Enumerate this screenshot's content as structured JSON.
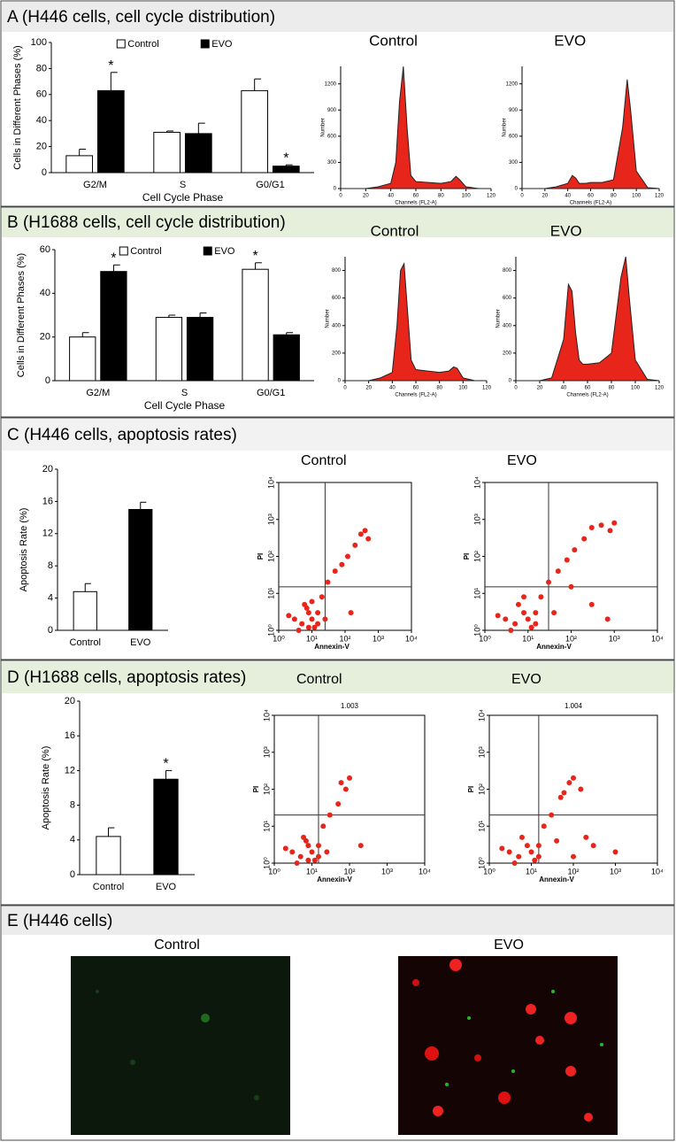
{
  "panels": [
    "A (H446 cells, cell cycle distribution)",
    "B (H1688 cells, cell cycle distribution)",
    "C (H446 cells, apoptosis rates)",
    "D (H1688 cells, apoptosis rates)",
    "E (H446 cells)"
  ],
  "images": [
    {
      "label": "Control"
    },
    {
      "label": "EVO"
    }
  ],
  "chart_data": [
    {
      "type": "bar",
      "ylabel": "Cells in Different Phases (%)",
      "xlabel": "Cell Cycle Phase",
      "categories": [
        "G2/M",
        "S",
        "G0/G1"
      ],
      "series": [
        {
          "name": "Control",
          "color": "#ffffff",
          "values": [
            13,
            31,
            63
          ],
          "errors": [
            5,
            1,
            9
          ]
        },
        {
          "name": "EVO",
          "color": "#000000",
          "values": [
            63,
            30,
            5
          ],
          "errors": [
            14,
            8,
            1
          ],
          "markers": [
            "*",
            null,
            "*"
          ]
        }
      ],
      "ylim": [
        0,
        100
      ],
      "yticks": [
        0,
        20,
        40,
        60,
        80,
        100
      ]
    },
    {
      "type": "area",
      "title": "Control",
      "ylabel": "Number",
      "xlabel": "Channels (FL2-A)",
      "color": "#e8251b",
      "x": [
        0,
        10,
        20,
        30,
        40,
        44,
        47,
        50,
        53,
        56,
        60,
        70,
        80,
        88,
        92,
        95,
        100,
        110,
        120
      ],
      "values": [
        0,
        0,
        0,
        20,
        60,
        300,
        1000,
        1400,
        700,
        150,
        80,
        70,
        60,
        80,
        140,
        100,
        20,
        0,
        0
      ],
      "xlim": [
        0,
        120
      ],
      "xticks": [
        0,
        20,
        40,
        60,
        80,
        100,
        120
      ],
      "ylim": [
        0,
        1400
      ],
      "yticks": [
        0,
        300,
        600,
        900,
        1200
      ]
    },
    {
      "type": "area",
      "title": "EVO",
      "ylabel": "Number",
      "xlabel": "Channels (FL2-A)",
      "color": "#e8251b",
      "x": [
        0,
        10,
        20,
        30,
        40,
        44,
        47,
        50,
        53,
        56,
        60,
        70,
        80,
        88,
        92,
        95,
        100,
        110,
        120
      ],
      "values": [
        0,
        0,
        0,
        20,
        60,
        150,
        120,
        60,
        60,
        60,
        70,
        70,
        100,
        700,
        1250,
        900,
        200,
        10,
        0
      ],
      "xlim": [
        0,
        120
      ],
      "xticks": [
        0,
        20,
        40,
        60,
        80,
        100,
        120
      ],
      "ylim": [
        0,
        1400
      ],
      "yticks": [
        0,
        300,
        600,
        900,
        1200
      ]
    },
    {
      "type": "bar",
      "ylabel": "Cells in Different Phases (%)",
      "xlabel": "Cell Cycle Phase",
      "categories": [
        "G2/M",
        "S",
        "G0/G1"
      ],
      "series": [
        {
          "name": "Control",
          "color": "#ffffff",
          "values": [
            20,
            29,
            51
          ],
          "errors": [
            2,
            1,
            3
          ],
          "markers": [
            null,
            null,
            "*"
          ]
        },
        {
          "name": "EVO",
          "color": "#000000",
          "values": [
            50,
            29,
            21
          ],
          "errors": [
            3,
            2,
            1
          ],
          "markers": [
            "*",
            null,
            null
          ]
        }
      ],
      "ylim": [
        0,
        60
      ],
      "yticks": [
        0,
        20,
        40,
        60
      ]
    },
    {
      "type": "area",
      "title": "Control",
      "ylabel": "Number",
      "xlabel": "Channels (FL2-A)",
      "color": "#e8251b",
      "x": [
        0,
        10,
        20,
        30,
        40,
        44,
        47,
        50,
        53,
        56,
        60,
        70,
        80,
        88,
        92,
        95,
        100,
        110,
        120
      ],
      "values": [
        0,
        0,
        0,
        20,
        60,
        400,
        800,
        850,
        500,
        150,
        80,
        70,
        60,
        70,
        100,
        90,
        20,
        0,
        0
      ],
      "xlim": [
        0,
        120
      ],
      "xticks": [
        0,
        20,
        40,
        60,
        80,
        100,
        120
      ],
      "ylim": [
        0,
        900
      ],
      "yticks": [
        0,
        200,
        400,
        600,
        800
      ]
    },
    {
      "type": "area",
      "title": "EVO",
      "ylabel": "Number",
      "xlabel": "Channels (FL2-A)",
      "color": "#e8251b",
      "x": [
        0,
        10,
        20,
        30,
        40,
        44,
        47,
        50,
        53,
        56,
        60,
        70,
        80,
        88,
        92,
        95,
        100,
        110,
        120
      ],
      "values": [
        0,
        0,
        0,
        20,
        300,
        700,
        650,
        350,
        150,
        120,
        120,
        130,
        200,
        750,
        900,
        600,
        150,
        10,
        0
      ],
      "xlim": [
        0,
        120
      ],
      "xticks": [
        0,
        20,
        40,
        60,
        80,
        100,
        120
      ],
      "ylim": [
        0,
        900
      ],
      "yticks": [
        0,
        200,
        400,
        600,
        800
      ]
    },
    {
      "type": "bar",
      "ylabel": "Apoptosis Rate (%)",
      "categories": [
        "Control",
        "EVO"
      ],
      "series": [
        {
          "colors": [
            "#ffffff",
            "#000000"
          ],
          "values": [
            4.8,
            15
          ],
          "errors": [
            1,
            0.9
          ]
        }
      ],
      "ylim": [
        0,
        20
      ],
      "yticks": [
        0,
        4,
        8,
        12,
        16,
        20
      ]
    },
    {
      "type": "scatter",
      "title": "Control",
      "xlabel": "Annexin-V",
      "ylabel": "PI",
      "log": true,
      "color": "#e8251b",
      "x": [
        3,
        5,
        8,
        10,
        12,
        6,
        15,
        4,
        20,
        30,
        50,
        80,
        120,
        200,
        300,
        400,
        500,
        15,
        8,
        10,
        7,
        2,
        25,
        150
      ],
      "y": [
        2,
        1.5,
        3,
        2,
        1.2,
        5,
        3,
        1,
        8,
        20,
        40,
        60,
        100,
        200,
        400,
        500,
        300,
        1.5,
        1.2,
        6,
        4,
        2.5,
        2,
        3
      ],
      "xlim": [
        1,
        10000
      ],
      "ylim": [
        1,
        10000
      ],
      "quadrant": [
        25,
        15
      ],
      "xticks": [
        {
          "value": 1,
          "label": "10⁰"
        },
        {
          "value": 10,
          "label": "10¹"
        },
        {
          "value": 100,
          "label": "10²"
        },
        {
          "value": 1000,
          "label": "10³"
        },
        {
          "value": 10000,
          "label": "10⁴"
        }
      ],
      "yticks": [
        {
          "value": 1,
          "label": "10⁰"
        },
        {
          "value": 10,
          "label": "10¹"
        },
        {
          "value": 100,
          "label": "10²"
        },
        {
          "value": 1000,
          "label": "10³"
        },
        {
          "value": 10000,
          "label": "10⁴"
        }
      ]
    },
    {
      "type": "scatter",
      "title": "EVO",
      "xlabel": "Annexin-V",
      "ylabel": "PI",
      "log": true,
      "color": "#e8251b",
      "x": [
        3,
        5,
        8,
        10,
        12,
        6,
        15,
        4,
        20,
        30,
        50,
        80,
        120,
        200,
        300,
        500,
        800,
        1000,
        15,
        8,
        40,
        300,
        700,
        100,
        2
      ],
      "y": [
        2,
        1.5,
        3,
        2,
        1.2,
        5,
        3,
        1,
        8,
        20,
        40,
        80,
        150,
        300,
        600,
        700,
        500,
        800,
        1.5,
        8,
        3,
        5,
        2,
        15,
        2.5
      ],
      "xlim": [
        1,
        10000
      ],
      "ylim": [
        1,
        10000
      ],
      "quadrant": [
        30,
        15
      ],
      "xticks": [
        {
          "value": 1,
          "label": "10⁰"
        },
        {
          "value": 10,
          "label": "10¹"
        },
        {
          "value": 100,
          "label": "10²"
        },
        {
          "value": 1000,
          "label": "10³"
        },
        {
          "value": 10000,
          "label": "10⁴"
        }
      ],
      "yticks": [
        {
          "value": 1,
          "label": "10⁰"
        },
        {
          "value": 10,
          "label": "10¹"
        },
        {
          "value": 100,
          "label": "10²"
        },
        {
          "value": 1000,
          "label": "10³"
        },
        {
          "value": 10000,
          "label": "10⁴"
        }
      ]
    },
    {
      "type": "bar",
      "ylabel": "Apoptosis Rate (%)",
      "categories": [
        "Control",
        "EVO"
      ],
      "series": [
        {
          "colors": [
            "#ffffff",
            "#000000"
          ],
          "values": [
            4.4,
            11
          ],
          "errors": [
            1,
            1
          ],
          "markers": [
            null,
            "*"
          ]
        }
      ],
      "ylim": [
        0,
        20
      ],
      "yticks": [
        0,
        4,
        8,
        12,
        16,
        20
      ]
    },
    {
      "type": "scatter",
      "title": "Control",
      "annotation": "1.003",
      "xlabel": "Annexin-V",
      "ylabel": "PI",
      "log": true,
      "color": "#e8251b",
      "x": [
        3,
        5,
        8,
        10,
        12,
        6,
        15,
        4,
        20,
        30,
        50,
        80,
        100,
        60,
        15,
        8,
        7,
        2,
        25,
        200
      ],
      "y": [
        2,
        1.5,
        3,
        2,
        1.2,
        5,
        3,
        1,
        10,
        20,
        40,
        100,
        200,
        150,
        1.5,
        1.2,
        4,
        2.5,
        2,
        3
      ],
      "xlim": [
        1,
        10000
      ],
      "ylim": [
        1,
        10000
      ],
      "quadrant": [
        15,
        20
      ],
      "xticks": [
        {
          "value": 1,
          "label": "10⁰"
        },
        {
          "value": 10,
          "label": "10¹"
        },
        {
          "value": 100,
          "label": "10²"
        },
        {
          "value": 1000,
          "label": "10³"
        },
        {
          "value": 10000,
          "label": "10⁴"
        }
      ],
      "yticks": [
        {
          "value": 1,
          "label": "10⁰"
        },
        {
          "value": 10,
          "label": "10¹"
        },
        {
          "value": 100,
          "label": "10²"
        },
        {
          "value": 1000,
          "label": "10³"
        },
        {
          "value": 10000,
          "label": "10⁴"
        }
      ]
    },
    {
      "type": "scatter",
      "title": "EVO",
      "annotation": "1.004",
      "xlabel": "Annexin-V",
      "ylabel": "PI",
      "log": true,
      "color": "#e8251b",
      "x": [
        3,
        5,
        8,
        10,
        12,
        6,
        15,
        4,
        20,
        30,
        50,
        80,
        100,
        150,
        60,
        200,
        300,
        1000,
        40,
        100,
        15,
        2
      ],
      "y": [
        2,
        1.5,
        3,
        2,
        1.2,
        5,
        3,
        1,
        10,
        20,
        60,
        150,
        200,
        100,
        80,
        5,
        3,
        2,
        4,
        1.5,
        1.5,
        2.5
      ],
      "xlim": [
        1,
        10000
      ],
      "ylim": [
        1,
        10000
      ],
      "quadrant": [
        15,
        20
      ],
      "xticks": [
        {
          "value": 1,
          "label": "10⁰"
        },
        {
          "value": 10,
          "label": "10¹"
        },
        {
          "value": 100,
          "label": "10²"
        },
        {
          "value": 1000,
          "label": "10³"
        },
        {
          "value": 10000,
          "label": "10⁴"
        }
      ],
      "yticks": [
        {
          "value": 1,
          "label": "10⁰"
        },
        {
          "value": 10,
          "label": "10¹"
        },
        {
          "value": 100,
          "label": "10²"
        },
        {
          "value": 1000,
          "label": "10³"
        },
        {
          "value": 10000,
          "label": "10⁴"
        }
      ]
    }
  ]
}
